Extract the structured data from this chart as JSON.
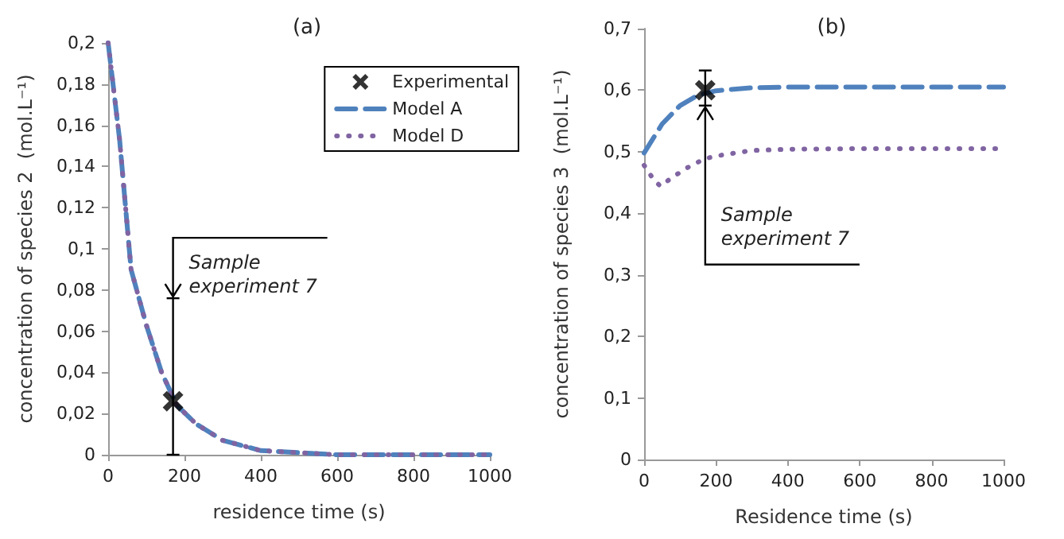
{
  "chart_data": [
    {
      "type": "line",
      "title": "(a)",
      "xlabel": "residence time (s)",
      "ylabel": "concentration of species 2  (mol.L⁻¹)",
      "xlim": [
        0,
        1000
      ],
      "xticks": [
        0,
        200,
        400,
        600,
        800,
        1000
      ],
      "ylim": [
        0,
        0.2
      ],
      "yticks": [
        {
          "value": 0,
          "label": "0"
        },
        {
          "value": 0.02,
          "label": "0,02"
        },
        {
          "value": 0.04,
          "label": "0,04"
        },
        {
          "value": 0.06,
          "label": "0,06"
        },
        {
          "value": 0.08,
          "label": "0,08"
        },
        {
          "value": 0.1,
          "label": "0,1"
        },
        {
          "value": 0.12,
          "label": "0,12"
        },
        {
          "value": 0.14,
          "label": "0,14"
        },
        {
          "value": 0.16,
          "label": "0,16"
        },
        {
          "value": 0.18,
          "label": "0,18"
        },
        {
          "value": 0.2,
          "label": "0,2"
        }
      ],
      "grid": false,
      "legend": "top right",
      "annotations": [
        {
          "text": "Sample experiment 7",
          "x": 170,
          "y": 0.076
        }
      ],
      "series": [
        {
          "name": "Experimental",
          "type": "scatter",
          "marker": "cross",
          "color": "#000000",
          "x": [
            170
          ],
          "values": [
            0.026
          ],
          "errors": [
            [
              0,
              0.076
            ]
          ]
        },
        {
          "name": "Model A",
          "line_style": "dashed",
          "color": "#4f81bd",
          "x": [
            0,
            30,
            60,
            100,
            140,
            180,
            230,
            300,
            400,
            500,
            600,
            700,
            1000
          ],
          "values": [
            0.2,
            0.153,
            0.09,
            0.063,
            0.04,
            0.024,
            0.015,
            0.007,
            0.002,
            0.001,
            0,
            0,
            0
          ]
        },
        {
          "name": "Model D",
          "line_style": "dotted",
          "color": "#8064a2",
          "x": [
            0,
            30,
            60,
            100,
            140,
            180,
            230,
            300,
            400,
            500,
            600,
            700,
            1000
          ],
          "values": [
            0.2,
            0.153,
            0.09,
            0.063,
            0.04,
            0.024,
            0.015,
            0.007,
            0.002,
            0.001,
            0,
            0,
            0
          ]
        }
      ]
    },
    {
      "type": "line",
      "title": "(b)",
      "xlabel": "Residence time (s)",
      "ylabel": "concentration of species 3  (mol.L⁻¹)",
      "xlim": [
        0,
        1000
      ],
      "xticks": [
        0,
        200,
        400,
        600,
        800,
        1000
      ],
      "ylim": [
        0,
        0.7
      ],
      "yticks": [
        {
          "value": 0,
          "label": "0"
        },
        {
          "value": 0.1,
          "label": "0,1"
        },
        {
          "value": 0.2,
          "label": "0,2"
        },
        {
          "value": 0.3,
          "label": "0,3"
        },
        {
          "value": 0.4,
          "label": "0,4"
        },
        {
          "value": 0.5,
          "label": "0,5"
        },
        {
          "value": 0.6,
          "label": "0,6"
        },
        {
          "value": 0.7,
          "label": "0,7"
        }
      ],
      "grid": false,
      "legend": false,
      "annotations": [
        {
          "text": "Sample experiment 7",
          "x": 170,
          "y": 0.575
        }
      ],
      "series": [
        {
          "type": "scatter",
          "marker": "cross",
          "color": "#000000",
          "x": [
            170
          ],
          "values": [
            0.6
          ],
          "errors": [
            [
              0.575,
              0.632
            ]
          ]
        },
        {
          "line_style": "dashed",
          "color": "#4f81bd",
          "x": [
            0,
            50,
            100,
            150,
            200,
            300,
            400,
            600,
            1000
          ],
          "values": [
            0.498,
            0.545,
            0.575,
            0.592,
            0.599,
            0.604,
            0.605,
            0.605,
            0.605
          ]
        },
        {
          "line_style": "dotted",
          "color": "#8064a2",
          "x": [
            0,
            25,
            45,
            80,
            120,
            170,
            220,
            300,
            400,
            600,
            1000
          ],
          "values": [
            0.478,
            0.456,
            0.444,
            0.459,
            0.474,
            0.489,
            0.495,
            0.502,
            0.504,
            0.505,
            0.505
          ]
        }
      ]
    }
  ]
}
